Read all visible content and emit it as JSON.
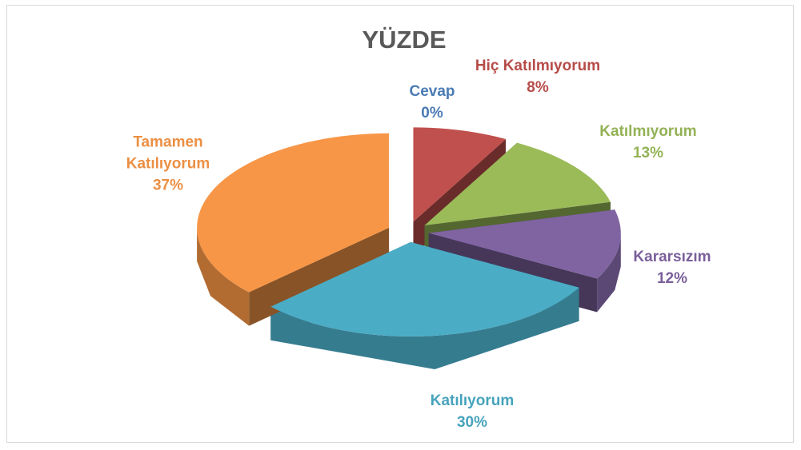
{
  "chart_data": {
    "type": "pie",
    "title": "YÜZDE",
    "categories": [
      "Cevap",
      "Hiç Katılmıyorum",
      "Katılmıyorum",
      "Kararsızım",
      "Katılıyorum",
      "Tamamen Katılıyorum"
    ],
    "values": [
      0,
      8,
      13,
      12,
      30,
      37
    ],
    "value_labels": [
      "0%",
      "8%",
      "13%",
      "12%",
      "30%",
      "37%"
    ],
    "colors": [
      "#4f81bd",
      "#c0504d",
      "#9bbb59",
      "#8064a2",
      "#4bacc6",
      "#f79646"
    ]
  }
}
